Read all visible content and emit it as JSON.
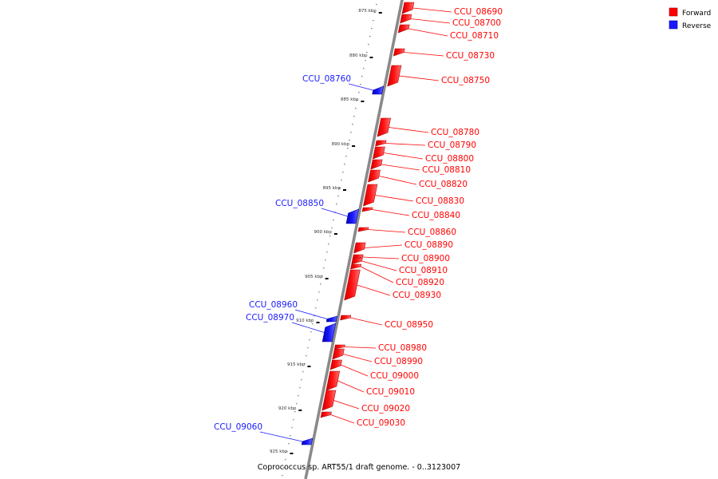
{
  "legend": {
    "forward_label": "Forward",
    "reverse_label": "Reverse",
    "forward_color": "#ff0000",
    "reverse_color": "#1a1aff"
  },
  "footer_text": "Coprococcus sp. ART55/1 draft genome. - 0..3123007",
  "kbp_ticks": [
    "875 kbp",
    "880 kbp",
    "885 kbp",
    "890 kbp",
    "895 kbp",
    "900 kbp",
    "905 kbp",
    "910 kbp",
    "915 kbp",
    "920 kbp",
    "925 kbp"
  ],
  "features": [
    {
      "name": "CCU_08690",
      "strand": "forward"
    },
    {
      "name": "CCU_08700",
      "strand": "forward"
    },
    {
      "name": "CCU_08710",
      "strand": "forward"
    },
    {
      "name": "CCU_08730",
      "strand": "forward"
    },
    {
      "name": "CCU_08750",
      "strand": "forward"
    },
    {
      "name": "CCU_08760",
      "strand": "reverse"
    },
    {
      "name": "CCU_08780",
      "strand": "forward"
    },
    {
      "name": "CCU_08790",
      "strand": "forward"
    },
    {
      "name": "CCU_08800",
      "strand": "forward"
    },
    {
      "name": "CCU_08810",
      "strand": "forward"
    },
    {
      "name": "CCU_08820",
      "strand": "forward"
    },
    {
      "name": "CCU_08830",
      "strand": "forward"
    },
    {
      "name": "CCU_08840",
      "strand": "forward"
    },
    {
      "name": "CCU_08850",
      "strand": "reverse"
    },
    {
      "name": "CCU_08860",
      "strand": "forward"
    },
    {
      "name": "CCU_08890",
      "strand": "forward"
    },
    {
      "name": "CCU_08900",
      "strand": "forward"
    },
    {
      "name": "CCU_08910",
      "strand": "forward"
    },
    {
      "name": "CCU_08920",
      "strand": "forward"
    },
    {
      "name": "CCU_08930",
      "strand": "forward"
    },
    {
      "name": "CCU_08950",
      "strand": "forward"
    },
    {
      "name": "CCU_08960",
      "strand": "reverse"
    },
    {
      "name": "CCU_08970",
      "strand": "reverse"
    },
    {
      "name": "CCU_08980",
      "strand": "forward"
    },
    {
      "name": "CCU_08990",
      "strand": "forward"
    },
    {
      "name": "CCU_09000",
      "strand": "forward"
    },
    {
      "name": "CCU_09010",
      "strand": "forward"
    },
    {
      "name": "CCU_09020",
      "strand": "forward"
    },
    {
      "name": "CCU_09030",
      "strand": "forward"
    },
    {
      "name": "CCU_09060",
      "strand": "reverse"
    }
  ]
}
